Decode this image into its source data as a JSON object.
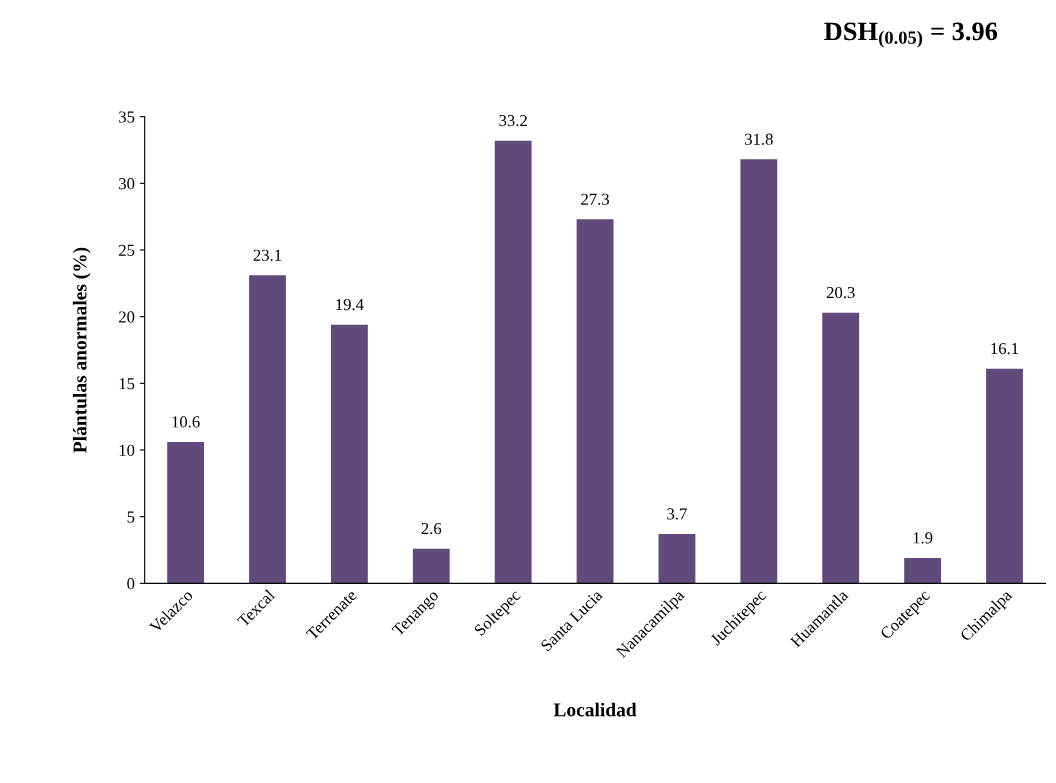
{
  "chart_data": {
    "type": "bar",
    "categories": [
      "Velazco",
      "Texcal",
      "Terrenate",
      "Tenango",
      "Soltepec",
      "Santa Lucia",
      "Nanacamilpa",
      "Juchitepec",
      "Huamantla",
      "Coatepec",
      "Chimalpa"
    ],
    "values": [
      10.6,
      23.1,
      19.4,
      2.6,
      33.2,
      27.3,
      3.7,
      31.8,
      20.3,
      1.9,
      16.1
    ],
    "color": "#604a7b",
    "data_labels": true,
    "xlabel": "Localidad",
    "ylabel": "Plántulas anormales (%)",
    "ylim": [
      0,
      35
    ],
    "yticks": [
      0,
      5,
      10,
      15,
      20,
      25,
      30,
      35
    ],
    "grid": false,
    "legend": false,
    "annotations": [
      "DSH$_{(0.05)}$ = 3.96"
    ]
  }
}
